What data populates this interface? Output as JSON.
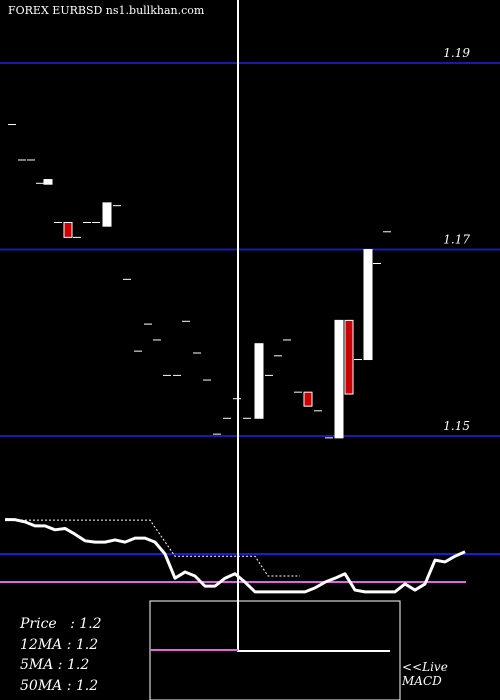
{
  "header": {
    "title": "FOREX  EURBSD ns1.bullkhan.com"
  },
  "chart_data": [
    {
      "type": "candlestick",
      "price_levels": [
        {
          "label": "1.19",
          "value": 1.19
        },
        {
          "label": "1.17",
          "value": 1.17
        },
        {
          "label": "1.15",
          "value": 1.15
        }
      ],
      "ylim": [
        1.144,
        1.2
      ],
      "candles": [
        {
          "x": 12,
          "o": 1.1834,
          "c": 1.1834
        },
        {
          "x": 22,
          "o": 1.1796,
          "c": 1.1796
        },
        {
          "x": 31,
          "o": 1.1796,
          "c": 1.1796
        },
        {
          "x": 40,
          "o": 1.1771,
          "c": 1.1771
        },
        {
          "x": 48,
          "o": 1.1775,
          "c": 1.177
        },
        {
          "x": 58,
          "o": 1.1729,
          "c": 1.1729
        },
        {
          "x": 68,
          "o": 1.1729,
          "c": 1.1713,
          "bear": true
        },
        {
          "x": 77,
          "o": 1.1713,
          "c": 1.1713
        },
        {
          "x": 87,
          "o": 1.1729,
          "c": 1.1729
        },
        {
          "x": 96,
          "o": 1.1729,
          "c": 1.1729
        },
        {
          "x": 107,
          "o": 1.1725,
          "c": 1.175
        },
        {
          "x": 117,
          "o": 1.1747,
          "c": 1.1747,
          "bear": true
        },
        {
          "x": 127,
          "o": 1.1668,
          "c": 1.1668
        },
        {
          "x": 138,
          "o": 1.1591,
          "c": 1.1591
        },
        {
          "x": 148,
          "o": 1.162,
          "c": 1.162
        },
        {
          "x": 157,
          "o": 1.1603,
          "c": 1.1603
        },
        {
          "x": 167,
          "o": 1.1565,
          "c": 1.1565
        },
        {
          "x": 177,
          "o": 1.1565,
          "c": 1.1565
        },
        {
          "x": 186,
          "o": 1.1623,
          "c": 1.1623
        },
        {
          "x": 197,
          "o": 1.1589,
          "c": 1.1589
        },
        {
          "x": 207,
          "o": 1.156,
          "c": 1.156
        },
        {
          "x": 217,
          "o": 1.1502,
          "c": 1.1502
        },
        {
          "x": 227,
          "o": 1.1519,
          "c": 1.1519
        },
        {
          "x": 237,
          "o": 1.154,
          "c": 1.154
        },
        {
          "x": 247,
          "o": 1.1519,
          "c": 1.1519
        },
        {
          "x": 259,
          "o": 1.1519,
          "c": 1.1599
        },
        {
          "x": 269,
          "o": 1.1565,
          "c": 1.1565
        },
        {
          "x": 278,
          "o": 1.1586,
          "c": 1.1586
        },
        {
          "x": 287,
          "o": 1.1603,
          "c": 1.1603
        },
        {
          "x": 298,
          "o": 1.1547,
          "c": 1.1547
        },
        {
          "x": 308,
          "o": 1.1547,
          "c": 1.1532,
          "bear": true
        },
        {
          "x": 318,
          "o": 1.1527,
          "c": 1.1527
        },
        {
          "x": 329,
          "o": 1.1498,
          "c": 1.1498
        },
        {
          "x": 339,
          "o": 1.1498,
          "c": 1.1624
        },
        {
          "x": 349,
          "o": 1.1624,
          "c": 1.1545,
          "bear": true
        },
        {
          "x": 358,
          "o": 1.1582,
          "c": 1.1582
        },
        {
          "x": 368,
          "o": 1.1582,
          "c": 1.17
        },
        {
          "x": 377,
          "o": 1.1685,
          "c": 1.1685
        },
        {
          "x": 387,
          "o": 1.1719,
          "c": 1.1719
        }
      ]
    },
    {
      "type": "line",
      "name": "MACD",
      "ylim": [
        -1,
        1
      ],
      "baseline": 0,
      "x": [
        5,
        15,
        25,
        35,
        45,
        55,
        65,
        75,
        85,
        95,
        105,
        115,
        125,
        135,
        145,
        155,
        165,
        175,
        185,
        195,
        205,
        215,
        225,
        235,
        245,
        255,
        265,
        275,
        285,
        295,
        305,
        315,
        325,
        335,
        345,
        355,
        365,
        375,
        385,
        395,
        405,
        415,
        425,
        435,
        445,
        455,
        465
      ],
      "macd": [
        0.78,
        0.78,
        0.73,
        0.64,
        0.64,
        0.55,
        0.58,
        0.45,
        0.3,
        0.27,
        0.27,
        0.32,
        0.27,
        0.36,
        0.36,
        0.27,
        0.0,
        -0.55,
        -0.41,
        -0.5,
        -0.73,
        -0.73,
        -0.55,
        -0.45,
        -0.64,
        -0.86,
        -0.86,
        -0.86,
        -0.86,
        -0.86,
        -0.86,
        -0.77,
        -0.64,
        -0.55,
        -0.45,
        -0.82,
        -0.86,
        -0.86,
        -0.86,
        -0.86,
        -0.68,
        -0.82,
        -0.68,
        -0.14,
        -0.18,
        -0.05,
        0.05
      ],
      "signal_x": [
        5,
        150,
        175,
        240,
        255,
        268,
        300
      ],
      "signal": [
        0.77,
        0.77,
        -0.05,
        -0.05,
        -0.05,
        -0.5,
        -0.5
      ]
    }
  ],
  "stats": {
    "price": "Price   : 1.2",
    "ma12": "12MA : 1.2",
    "ma5": "5MA : 1.2",
    "ma50": "50MA : 1.2"
  },
  "live": {
    "line1": "<<Live",
    "line2": "MACD"
  },
  "colors": {
    "background": "#000000",
    "level_line": "#1a1aa8",
    "bull_candle": "#ffffff",
    "bear_candle": "#cc0000",
    "zero_line": "#1a1ad8",
    "lower_line": "#e066e0"
  }
}
